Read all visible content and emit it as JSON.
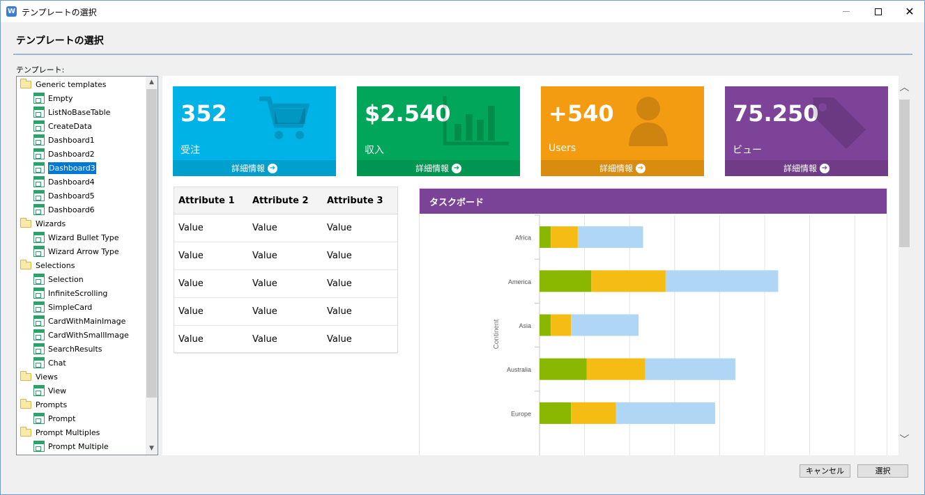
{
  "window": {
    "title": "テンプレートの選択",
    "app_icon_letter": "W"
  },
  "heading": "テンプレートの選択",
  "tree_caption": "テンプレート:",
  "tree": [
    {
      "type": "folder",
      "label": "Generic templates"
    },
    {
      "type": "template",
      "label": "Empty"
    },
    {
      "type": "template",
      "label": "ListNoBaseTable"
    },
    {
      "type": "template",
      "label": "CreateData"
    },
    {
      "type": "template",
      "label": "Dashboard1"
    },
    {
      "type": "template",
      "label": "Dashboard2"
    },
    {
      "type": "template",
      "label": "Dashboard3",
      "selected": true
    },
    {
      "type": "template",
      "label": "Dashboard4"
    },
    {
      "type": "template",
      "label": "Dashboard5"
    },
    {
      "type": "template",
      "label": "Dashboard6"
    },
    {
      "type": "folder",
      "label": "Wizards"
    },
    {
      "type": "template",
      "label": "Wizard Bullet Type"
    },
    {
      "type": "template",
      "label": "Wizard Arrow Type"
    },
    {
      "type": "folder",
      "label": "Selections"
    },
    {
      "type": "template",
      "label": "Selection"
    },
    {
      "type": "template",
      "label": "InfiniteScrolling"
    },
    {
      "type": "template",
      "label": "SimpleCard"
    },
    {
      "type": "template",
      "label": "CardWithMainImage"
    },
    {
      "type": "template",
      "label": "CardWithSmallImage"
    },
    {
      "type": "template",
      "label": "SearchResults"
    },
    {
      "type": "template",
      "label": "Chat"
    },
    {
      "type": "folder",
      "label": "Views"
    },
    {
      "type": "template",
      "label": "View"
    },
    {
      "type": "folder",
      "label": "Prompts"
    },
    {
      "type": "template",
      "label": "Prompt"
    },
    {
      "type": "folder",
      "label": "Prompt Multiples"
    },
    {
      "type": "template",
      "label": "Prompt Multiple"
    }
  ],
  "tiles": [
    {
      "value": "352",
      "label": "受注",
      "link": "詳細情報",
      "color": "#00b3e6",
      "icon": "cart-icon"
    },
    {
      "value": "$2.540",
      "label": "収入",
      "link": "詳細情報",
      "color": "#00a65a",
      "icon": "bar-chart-icon"
    },
    {
      "value": "+540",
      "label": "Users",
      "link": "詳細情報",
      "color": "#f39c12",
      "icon": "user-icon"
    },
    {
      "value": "75.250",
      "label": "ビュー",
      "link": "詳細情報",
      "color": "#7d4398",
      "icon": "tag-icon"
    }
  ],
  "table": {
    "headers": [
      "Attribute 1",
      "Attribute 2",
      "Attribute 3"
    ],
    "rows": [
      [
        "Value",
        "Value",
        "Value"
      ],
      [
        "Value",
        "Value",
        "Value"
      ],
      [
        "Value",
        "Value",
        "Value"
      ],
      [
        "Value",
        "Value",
        "Value"
      ],
      [
        "Value",
        "Value",
        "Value"
      ]
    ]
  },
  "panel": {
    "title": "タスクボード"
  },
  "chart_data": {
    "type": "bar",
    "orientation": "horizontal",
    "stacked": true,
    "categories": [
      "Africa",
      "America",
      "Asia",
      "Australia",
      "Europe"
    ],
    "series": [
      {
        "values": [
          5,
          23,
          5,
          21,
          14
        ],
        "color": "#8ab800"
      },
      {
        "values": [
          12,
          33,
          9,
          26,
          20
        ],
        "color": "#f5bd14"
      },
      {
        "values": [
          29,
          50,
          30,
          40,
          44
        ],
        "color": "#afd6f5"
      }
    ],
    "ylabel": "Continent",
    "xlim": [
      0,
      155
    ],
    "grid": true
  },
  "buttons": {
    "cancel": "キャンセル",
    "select": "選択"
  }
}
